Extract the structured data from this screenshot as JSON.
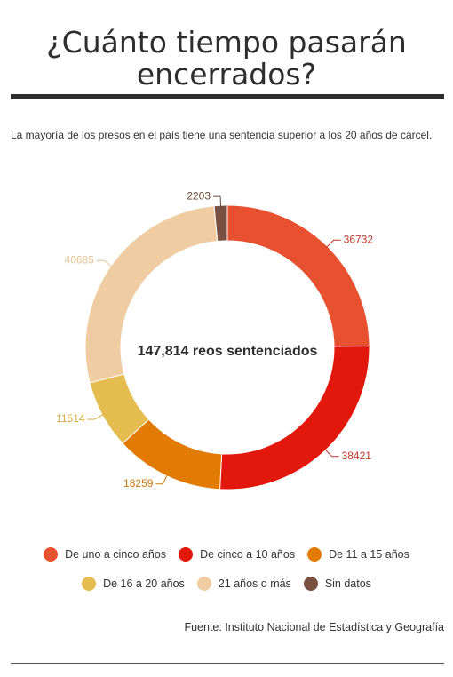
{
  "title_line1": "¿Cuánto tiempo pasarán",
  "title_line2": "encerrados?",
  "subtitle": "La mayoría de los presos en el país tiene una sentencia superior a los 20 años de cárcel.",
  "center_text": "147,814 reos sentenciados",
  "source": "Fuente: Instituto Nacional de Estadística y Geografía",
  "chart_data": {
    "type": "pie",
    "donut": true,
    "total": 147814,
    "categories": [
      "De uno a cinco años",
      "De cinco a 10 años",
      "De 11 a 15 años",
      "De 16 a 20 años",
      "21 años o más",
      "Sin datos"
    ],
    "values": [
      36732,
      38421,
      18259,
      11514,
      40685,
      2203
    ],
    "colors": [
      "#e8512f",
      "#e2180c",
      "#e27b04",
      "#e4bc4f",
      "#efcca2",
      "#7a5040"
    ],
    "label_colors": [
      "#c0392b",
      "#c0392b",
      "#c77a0e",
      "#d9a83a",
      "#e6c495",
      "#6b4636"
    ],
    "legend_placement": "bottom"
  }
}
